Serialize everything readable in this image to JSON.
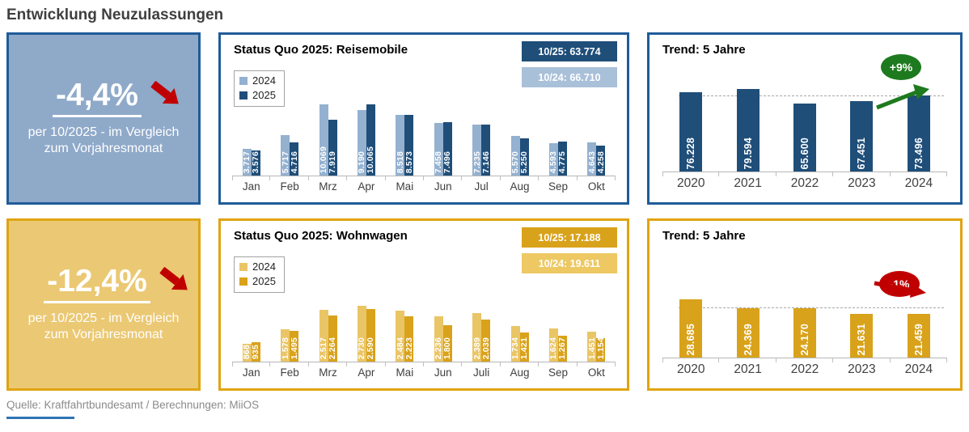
{
  "page": {
    "title": "Entwicklung Neuzulassungen",
    "footer": "Quelle: Kraftfahrtbundesamt / Berechnungen: MiiOS"
  },
  "colors": {
    "blue_dark": "#1F4E79",
    "blue_light": "#94B1D0",
    "blue_border": "#1F5C99",
    "blue_card_bg": "#8FA9C9",
    "badge_blue_light": "#A9C0D9",
    "gold_dark": "#D9A21B",
    "gold_light": "#EAC566",
    "gold_border": "#E0A411",
    "gold_card_bg": "#EBC873",
    "badge_gold_light": "#EDC863",
    "green": "#1E7A1E",
    "red": "#C00000"
  },
  "kpi_reisemobile": {
    "value": "-4,4%",
    "caption_line1": "per 10/2025 - im Vergleich",
    "caption_line2": "zum Vorjahresmonat",
    "arrow_icon": "red-down-right-arrow"
  },
  "kpi_wohnwagen": {
    "value": "-12,4%",
    "caption_line1": "per 10/2025 - im Vergleich",
    "caption_line2": "zum Vorjahresmonat",
    "arrow_icon": "red-down-right-arrow"
  },
  "chart_data": [
    {
      "type": "bar",
      "title": "Status Quo 2025: Reisemobile",
      "categories": [
        "Jan",
        "Feb",
        "Mrz",
        "Apr",
        "Mai",
        "Jun",
        "Jul",
        "Aug",
        "Sep",
        "Okt"
      ],
      "series": [
        {
          "name": "2024",
          "color": "#94B1D0",
          "values": [
            3717,
            5717,
            10069,
            9190,
            8518,
            7458,
            7235,
            5570,
            4593,
            4643
          ],
          "labels": [
            "3.717",
            "5.717",
            "10.069",
            "9.190",
            "8.518",
            "7.458",
            "7.235",
            "5.570",
            "4.593",
            "4.643"
          ]
        },
        {
          "name": "2025",
          "color": "#1F4E79",
          "values": [
            3576,
            4716,
            7919,
            10065,
            8573,
            7496,
            7146,
            5250,
            4775,
            4258
          ],
          "labels": [
            "3.576",
            "4.716",
            "7.919",
            "10.065",
            "8.573",
            "7.496",
            "7.146",
            "5.250",
            "4.775",
            "4.258"
          ]
        }
      ],
      "badges": [
        {
          "label": "10/25: 63.774",
          "color": "#1F4E79"
        },
        {
          "label": "10/24: 66.710",
          "color": "#A9C0D9"
        }
      ],
      "ylim": [
        0,
        10500
      ],
      "legend_position": "top-left",
      "grid": false
    },
    {
      "type": "bar",
      "title": "Trend: 5 Jahre",
      "categories": [
        "2020",
        "2021",
        "2022",
        "2023",
        "2024"
      ],
      "values": [
        76228,
        79594,
        65600,
        67451,
        73496
      ],
      "labels": [
        "76.228",
        "79.594",
        "65.600",
        "67.451",
        "73.496"
      ],
      "bar_color": "#1F4E79",
      "annotation": {
        "label": "+9%",
        "color": "#1E7A1E",
        "arrow": "up"
      },
      "reference_line": "dashed-average",
      "ylim": [
        0,
        84000
      ],
      "grid": false
    },
    {
      "type": "bar",
      "title": "Status Quo 2025: Wohnwagen",
      "categories": [
        "Jan",
        "Feb",
        "Mrz",
        "Apr",
        "Mai",
        "Jun",
        "Juli",
        "Aug",
        "Sep",
        "Okt"
      ],
      "series": [
        {
          "name": "2024",
          "color": "#EAC566",
          "values": [
            868,
            1578,
            2517,
            2730,
            2484,
            2236,
            2389,
            1734,
            1624,
            1451
          ],
          "labels": [
            "868",
            "1.578",
            "2.517",
            "2.730",
            "2.484",
            "2.236",
            "2.389",
            "1.734",
            "1.624",
            "1.451"
          ]
        },
        {
          "name": "2025",
          "color": "#D9A21B",
          "values": [
            935,
            1495,
            2264,
            2590,
            2223,
            1800,
            2039,
            1421,
            1267,
            1154
          ],
          "labels": [
            "935",
            "1.495",
            "2.264",
            "2.590",
            "2.223",
            "1.800",
            "2.039",
            "1.421",
            "1.267",
            "1.154"
          ]
        }
      ],
      "badges": [
        {
          "label": "10/25: 17.188",
          "color": "#D9A21B"
        },
        {
          "label": "10/24: 19.611",
          "color": "#EDC863"
        }
      ],
      "ylim": [
        0,
        2850
      ],
      "legend_position": "top-left",
      "grid": false
    },
    {
      "type": "bar",
      "title": "Trend: 5 Jahre",
      "categories": [
        "2020",
        "2021",
        "2022",
        "2023",
        "2024"
      ],
      "values": [
        28685,
        24369,
        24170,
        21631,
        21459
      ],
      "labels": [
        "28.685",
        "24.369",
        "24.170",
        "21.631",
        "21.459"
      ],
      "bar_color": "#D9A21B",
      "annotation": {
        "label": "-1%",
        "color": "#C00000",
        "arrow": "down"
      },
      "reference_line": "dashed-average",
      "ylim": [
        0,
        30200
      ],
      "grid": false
    }
  ]
}
